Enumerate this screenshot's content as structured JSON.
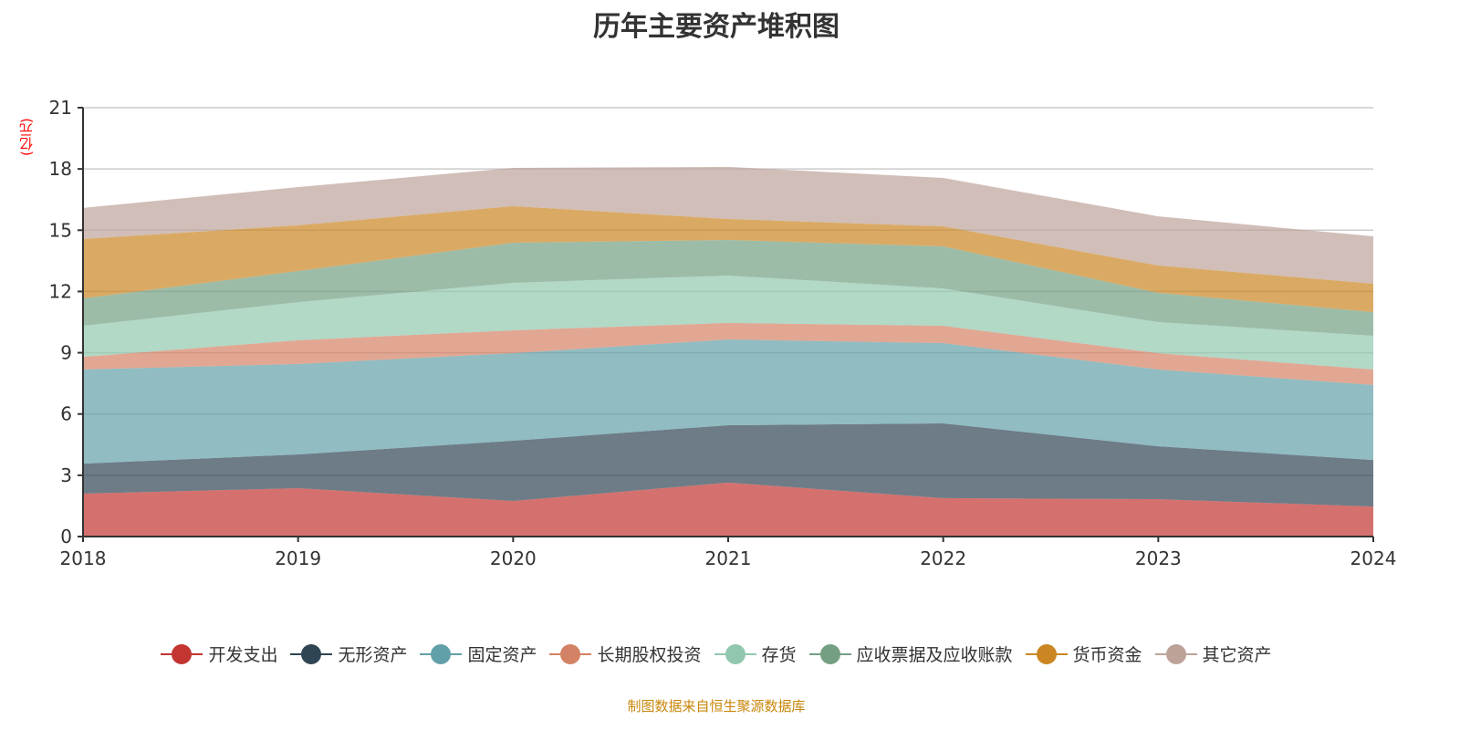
{
  "chart_data": {
    "type": "area",
    "stacked": true,
    "title": "历年主要资产堆积图",
    "ylabel": "(亿元)",
    "xlabel": "",
    "categories": [
      "2018",
      "2019",
      "2020",
      "2021",
      "2022",
      "2023",
      "2024"
    ],
    "ylim": [
      0,
      21
    ],
    "yticks": [
      0,
      3,
      6,
      9,
      12,
      15,
      18,
      21
    ],
    "grid": true,
    "legend_position": "bottom",
    "series": [
      {
        "name": "开发支出",
        "color": "#c23531",
        "values": [
          2.1,
          2.37,
          1.74,
          2.64,
          1.88,
          1.83,
          1.47
        ]
      },
      {
        "name": "无形资产",
        "color": "#2f4554",
        "values": [
          1.47,
          1.65,
          2.95,
          2.81,
          3.66,
          2.59,
          2.28
        ]
      },
      {
        "name": "固定资产",
        "color": "#61a0a8",
        "values": [
          4.61,
          4.43,
          4.29,
          4.2,
          3.93,
          3.76,
          3.67
        ]
      },
      {
        "name": "长期股权投资",
        "color": "#d48265",
        "values": [
          0.62,
          1.16,
          1.12,
          0.81,
          0.85,
          0.8,
          0.76
        ]
      },
      {
        "name": "存货",
        "color": "#91c7ae",
        "values": [
          1.52,
          1.87,
          2.32,
          2.32,
          1.83,
          1.52,
          1.65
        ]
      },
      {
        "name": "应收票据及应收账款",
        "color": "#749f83",
        "values": [
          1.34,
          1.52,
          1.97,
          1.74,
          2.06,
          1.43,
          1.16
        ]
      },
      {
        "name": "货币资金",
        "color": "#ca8622",
        "values": [
          2.91,
          2.24,
          1.79,
          1.03,
          0.98,
          1.34,
          1.39
        ]
      },
      {
        "name": "其它资产",
        "color": "#bda29a",
        "values": [
          1.52,
          1.87,
          1.87,
          2.55,
          2.37,
          2.41,
          2.32
        ]
      }
    ]
  },
  "source": "制图数据来自恒生聚源数据库"
}
